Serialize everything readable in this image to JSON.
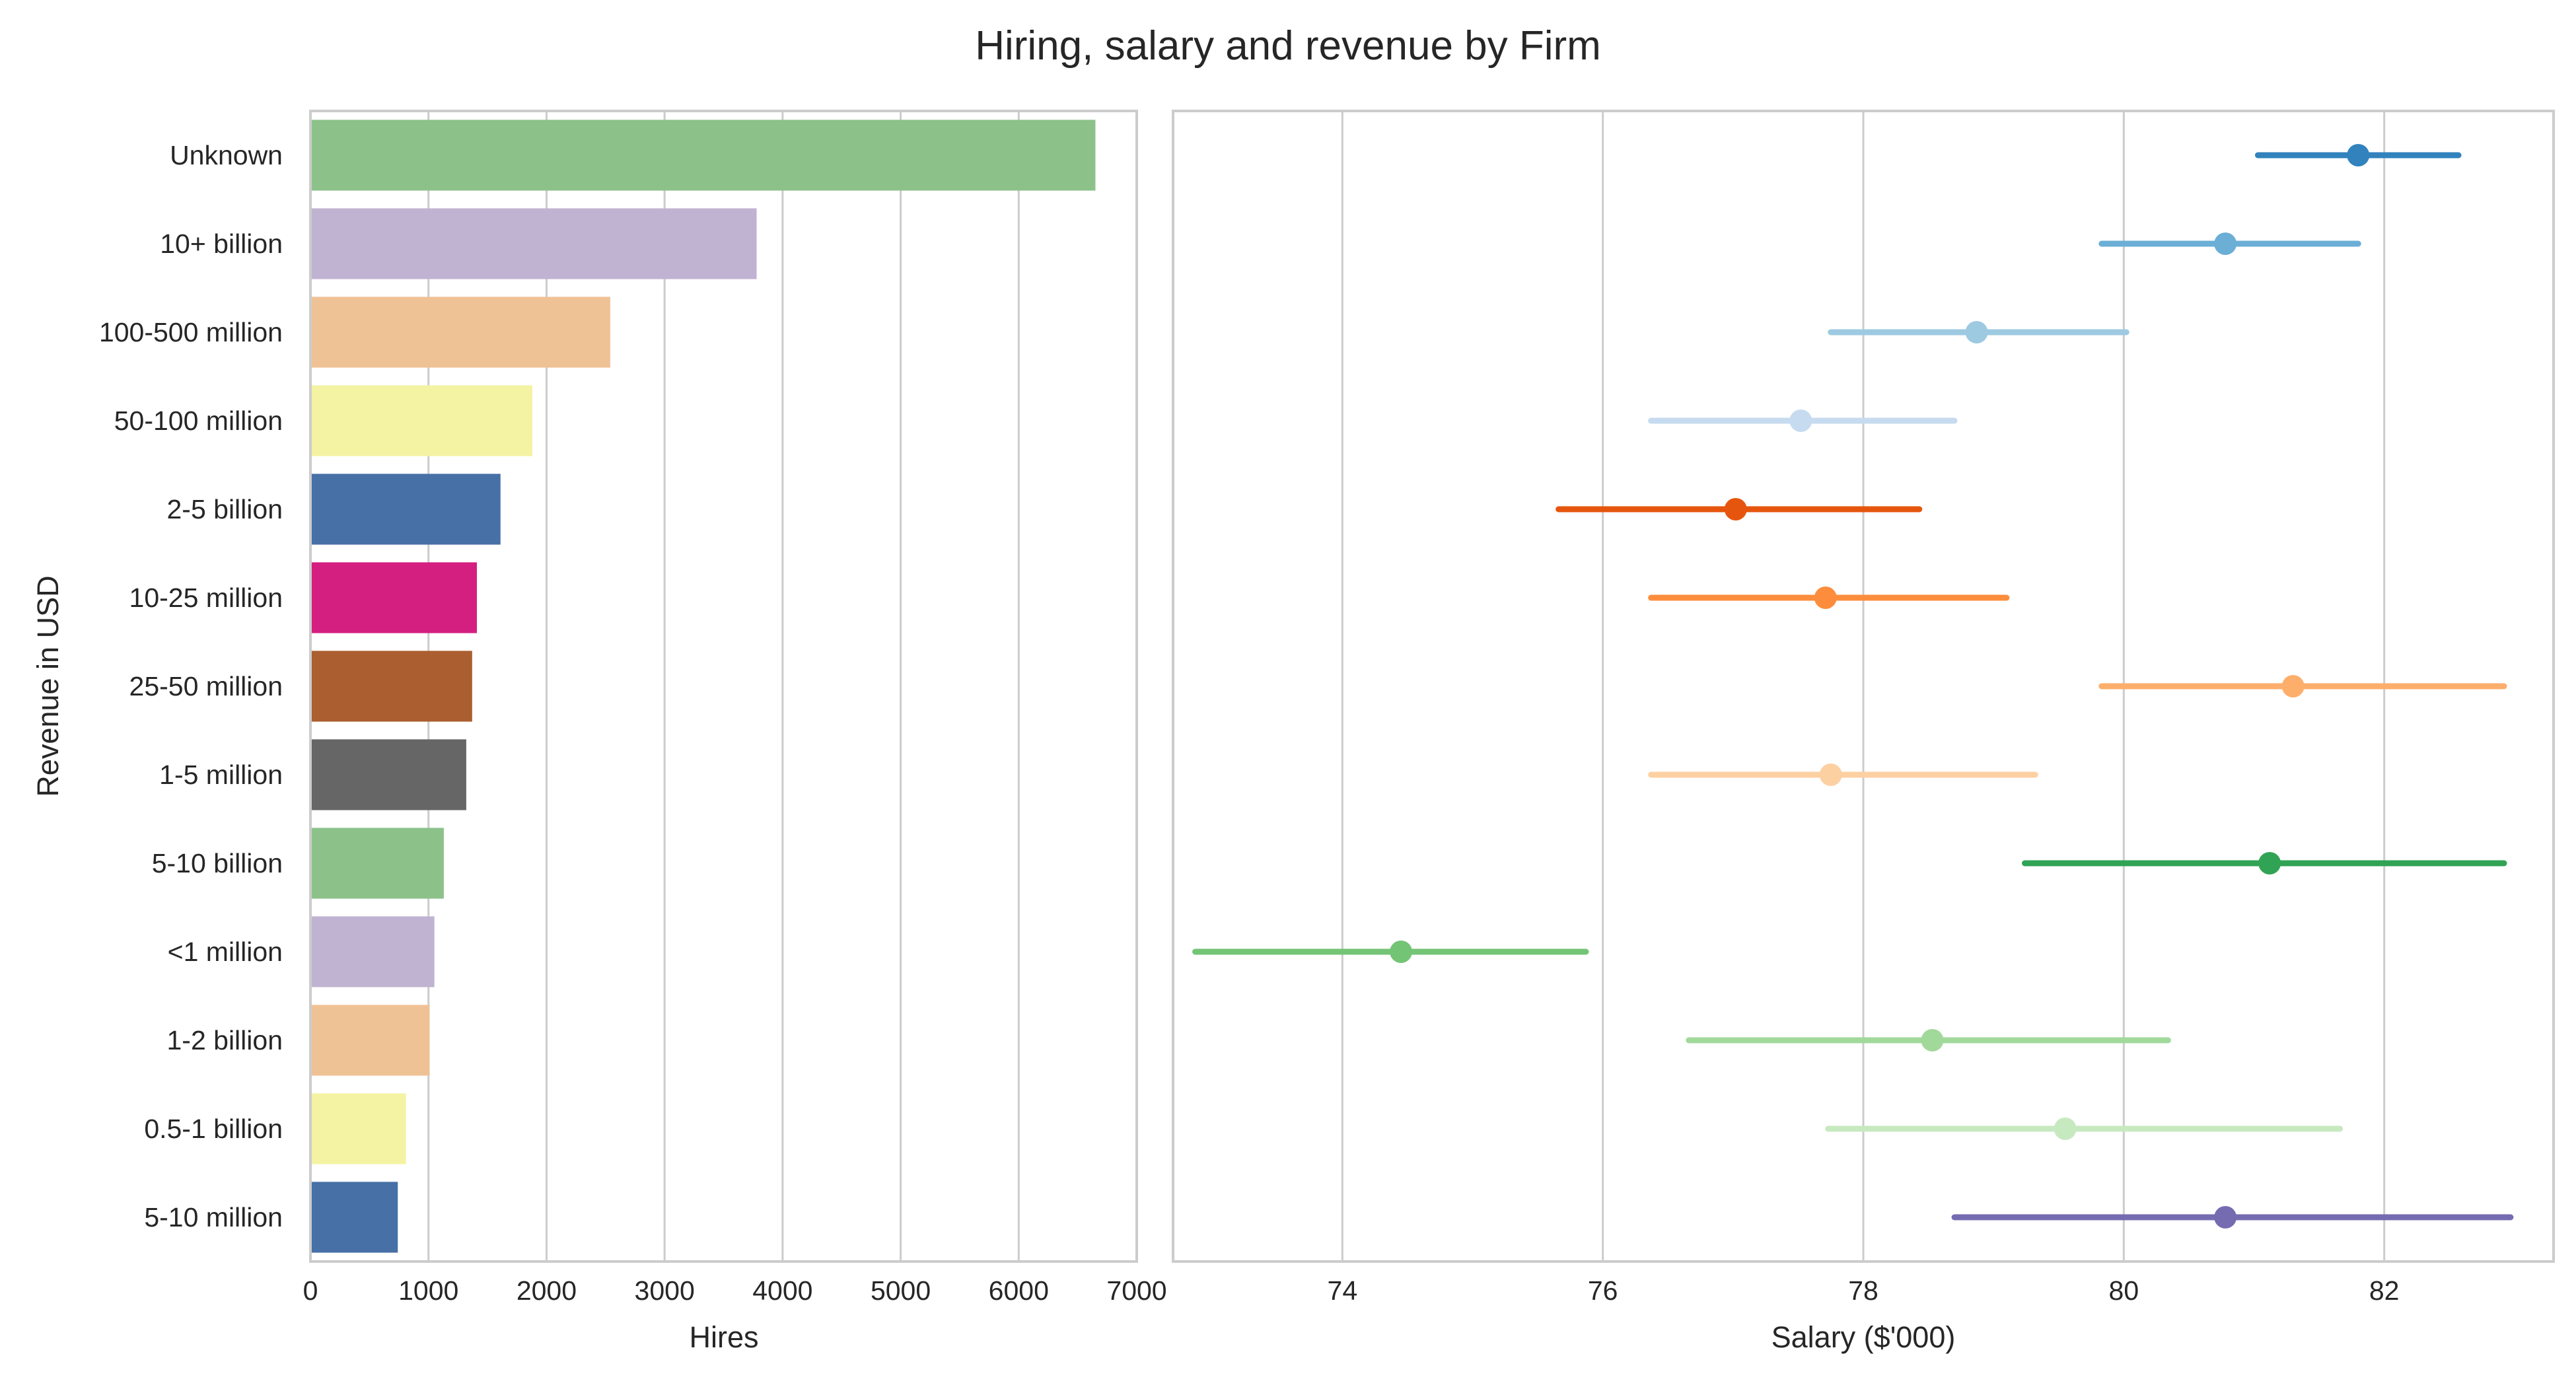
{
  "title": "Hiring, salary and revenue by Firm",
  "chart_data": [
    {
      "type": "bar",
      "orientation": "horizontal",
      "categories": [
        "Unknown",
        "10+ billion",
        "100-500 million",
        "50-100 million",
        "2-5 billion",
        "10-25 million",
        "25-50 million",
        "1-5 million",
        "5-10 billion",
        "<1 million",
        "1-2 billion",
        "0.5-1 billion",
        "5-10 million"
      ],
      "values": [
        6650,
        3780,
        2540,
        1880,
        1610,
        1410,
        1370,
        1320,
        1130,
        1050,
        1010,
        810,
        740
      ],
      "colors": [
        "#8cc28a",
        "#c0b3d2",
        "#efc296",
        "#f4f3a3",
        "#4670a6",
        "#d41f81",
        "#ab5e30",
        "#666666",
        "#8cc28a",
        "#c0b3d2",
        "#efc296",
        "#f4f3a3",
        "#4670a6"
      ],
      "xlabel": "Hires",
      "ylabel": "Revenue in USD",
      "xlim": [
        0,
        7000
      ],
      "xticks": [
        "0",
        "1000",
        "2000",
        "3000",
        "4000",
        "5000",
        "6000",
        "7000"
      ],
      "grid": "vertical"
    },
    {
      "type": "scatter",
      "style": "point with error bars",
      "categories": [
        "Unknown",
        "10+ billion",
        "100-500 million",
        "50-100 million",
        "2-5 billion",
        "10-25 million",
        "25-50 million",
        "1-5 million",
        "5-10 billion",
        "<1 million",
        "1-2 billion",
        "0.5-1 billion",
        "5-10 million"
      ],
      "values": [
        81.8,
        80.78,
        78.87,
        77.52,
        77.02,
        77.71,
        81.3,
        77.75,
        81.12,
        74.45,
        78.53,
        79.55,
        80.78
      ],
      "ci_low": [
        81.03,
        79.83,
        77.75,
        76.37,
        75.66,
        76.37,
        79.83,
        76.37,
        79.24,
        72.87,
        76.66,
        77.73,
        78.7
      ],
      "ci_high": [
        82.57,
        81.8,
        80.02,
        78.7,
        78.43,
        79.1,
        82.92,
        79.32,
        82.92,
        75.87,
        80.34,
        81.66,
        82.97
      ],
      "colors": [
        "#3182bd",
        "#6baed6",
        "#9ecae1",
        "#c6dbef",
        "#e6550d",
        "#fd8d3c",
        "#fdae6b",
        "#fdd0a2",
        "#31a354",
        "#74c476",
        "#a1d99b",
        "#c7e9c0",
        "#756bb1"
      ],
      "xlabel": "Salary ($'000)",
      "xlim": [
        72.7,
        83.3
      ],
      "xticks": [
        "74",
        "76",
        "78",
        "80",
        "82"
      ],
      "xtick_values": [
        74,
        76,
        78,
        80,
        82
      ],
      "grid": "vertical"
    }
  ]
}
